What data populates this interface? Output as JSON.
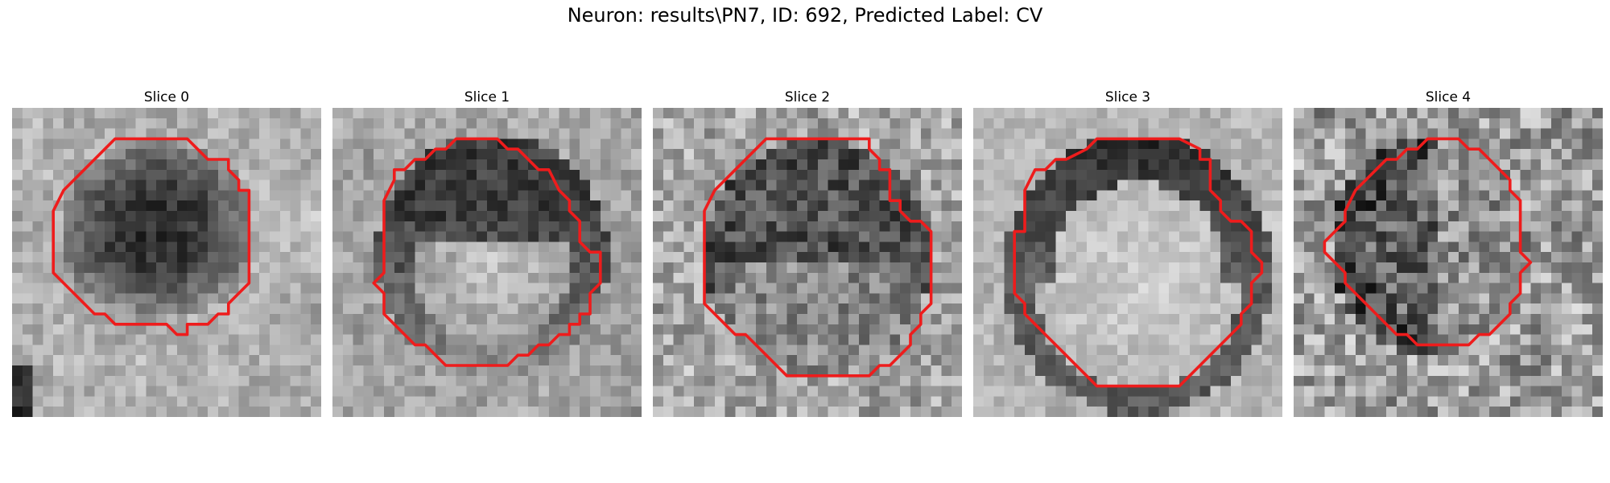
{
  "figure": {
    "title": "Neuron: results\\PN7, ID: 692, Predicted Label: CV"
  },
  "slices": [
    {
      "title": "Slice 0",
      "contour_color": "#ee1c1c",
      "texture": "dark-blob"
    },
    {
      "title": "Slice 1",
      "contour_color": "#ee1c1c",
      "texture": "dark-ring-bright-center"
    },
    {
      "title": "Slice 2",
      "contour_color": "#ee1c1c",
      "texture": "noisy-ring"
    },
    {
      "title": "Slice 3",
      "contour_color": "#ee1c1c",
      "texture": "dark-top-arc-bright-center"
    },
    {
      "title": "Slice 4",
      "contour_color": "#ee1c1c",
      "texture": "noisy-speckle"
    }
  ]
}
